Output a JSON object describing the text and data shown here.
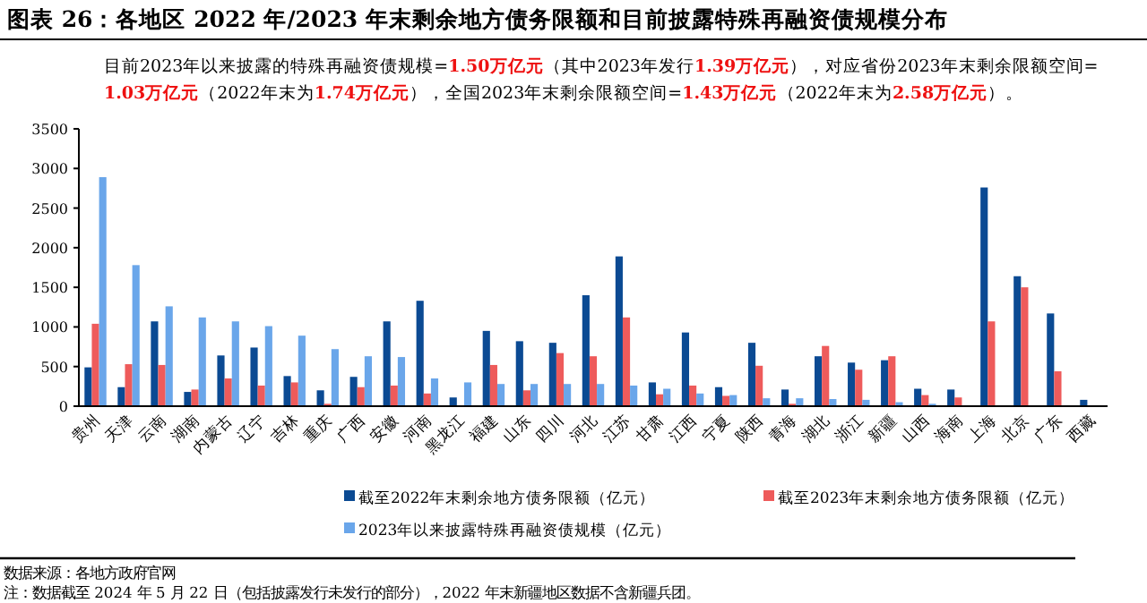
{
  "chart_data": {
    "type": "bar",
    "title": "图表 26：各地区 2022 年/2023 年末剩余地方债务限额和目前披露特殊再融资债规模分布",
    "categories": [
      "贵州",
      "天津",
      "云南",
      "湖南",
      "内蒙古",
      "辽宁",
      "吉林",
      "重庆",
      "广西",
      "安徽",
      "河南",
      "黑龙江",
      "福建",
      "山东",
      "四川",
      "河北",
      "江苏",
      "甘肃",
      "江西",
      "宁夏",
      "陕西",
      "青海",
      "湖北",
      "浙江",
      "新疆",
      "山西",
      "海南",
      "上海",
      "北京",
      "广东",
      "西藏"
    ],
    "series": [
      {
        "name": "截至2022年末剩余地方债务限额（亿元）",
        "color": "#0b4a93",
        "values": [
          490,
          240,
          1070,
          180,
          640,
          740,
          380,
          200,
          370,
          1070,
          1330,
          110,
          950,
          820,
          800,
          1400,
          1890,
          300,
          930,
          240,
          800,
          210,
          630,
          550,
          580,
          220,
          210,
          2760,
          1640,
          1170,
          80
        ]
      },
      {
        "name": "截至2023年末剩余地方债务限额（亿元）",
        "color": "#ee5b5b",
        "values": [
          1040,
          530,
          520,
          210,
          350,
          260,
          300,
          30,
          240,
          260,
          160,
          null,
          520,
          200,
          670,
          630,
          1120,
          150,
          260,
          130,
          510,
          30,
          760,
          460,
          630,
          140,
          110,
          1070,
          1500,
          440,
          null
        ]
      },
      {
        "name": "2023年以来披露特殊再融资债规模（亿元）",
        "color": "#6aa6ea",
        "values": [
          2890,
          1780,
          1260,
          1120,
          1070,
          1010,
          890,
          720,
          630,
          620,
          350,
          300,
          280,
          280,
          280,
          280,
          260,
          220,
          160,
          140,
          100,
          100,
          90,
          80,
          50,
          30,
          null,
          null,
          null,
          null,
          null
        ]
      }
    ],
    "ylim": [
      0,
      3500
    ],
    "yticks": [
      0,
      500,
      1000,
      1500,
      2000,
      2500,
      3000,
      3500
    ],
    "grid": false,
    "legend": "bottom",
    "annotations": [
      "目前2023年以来披露的特殊再融资债规模=1.50万亿元（其中2023年发行1.39万亿元），对应省份2023年末剩余限额空间=1.03万亿元（2022年末为1.74万亿元），全国2023年末剩余限额空间=1.43万亿元（2022年末为2.58万亿元）。",
      "数据来源：各地方政府官网",
      "注：数据截至 2024 年 5 月 22 日（包括披露发行未发行的部分），2022 年末新疆地区数据不含新疆兵团。"
    ]
  }
}
